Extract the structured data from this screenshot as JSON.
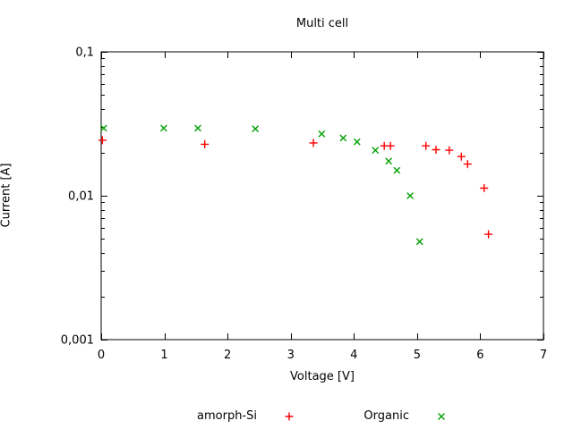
{
  "chart_data": {
    "type": "scatter",
    "title": "Multi cell",
    "xlabel": "Voltage [V]",
    "ylabel": "Current [A]",
    "xscale": "linear",
    "yscale": "log",
    "xlim": [
      0,
      7
    ],
    "ylim": [
      0.001,
      0.1
    ],
    "grid": false,
    "legend_position": "bottom-center",
    "border": "box",
    "x_ticks": {
      "values": [
        0,
        1,
        2,
        3,
        4,
        5,
        6,
        7
      ],
      "labels": [
        "0",
        "1",
        "2",
        "3",
        "4",
        "5",
        "6",
        "7"
      ]
    },
    "y_ticks": {
      "values": [
        0.001,
        0.01,
        0.1
      ],
      "labels": [
        "0,001",
        "0,01",
        "0,1"
      ]
    },
    "series": [
      {
        "name": "amorph-Si",
        "marker": "plus",
        "color": "#ff0000",
        "points": [
          [
            0.02,
            0.0243
          ],
          [
            1.64,
            0.0228
          ],
          [
            3.36,
            0.0233
          ],
          [
            4.48,
            0.0222
          ],
          [
            4.58,
            0.0222
          ],
          [
            5.14,
            0.0222
          ],
          [
            5.3,
            0.0209
          ],
          [
            5.51,
            0.0207
          ],
          [
            5.7,
            0.0187
          ],
          [
            5.8,
            0.0166
          ],
          [
            6.06,
            0.0113
          ],
          [
            6.13,
            0.0054
          ]
        ]
      },
      {
        "name": "Organic",
        "marker": "cross",
        "color": "#00a000",
        "points": [
          [
            0.04,
            0.0295
          ],
          [
            0.99,
            0.0295
          ],
          [
            1.53,
            0.0295
          ],
          [
            2.44,
            0.0292
          ],
          [
            3.49,
            0.0269
          ],
          [
            3.83,
            0.0252
          ],
          [
            4.05,
            0.0237
          ],
          [
            4.34,
            0.0207
          ],
          [
            4.55,
            0.0174
          ],
          [
            4.68,
            0.015
          ],
          [
            4.89,
            0.01
          ],
          [
            5.04,
            0.0048
          ]
        ]
      }
    ]
  }
}
